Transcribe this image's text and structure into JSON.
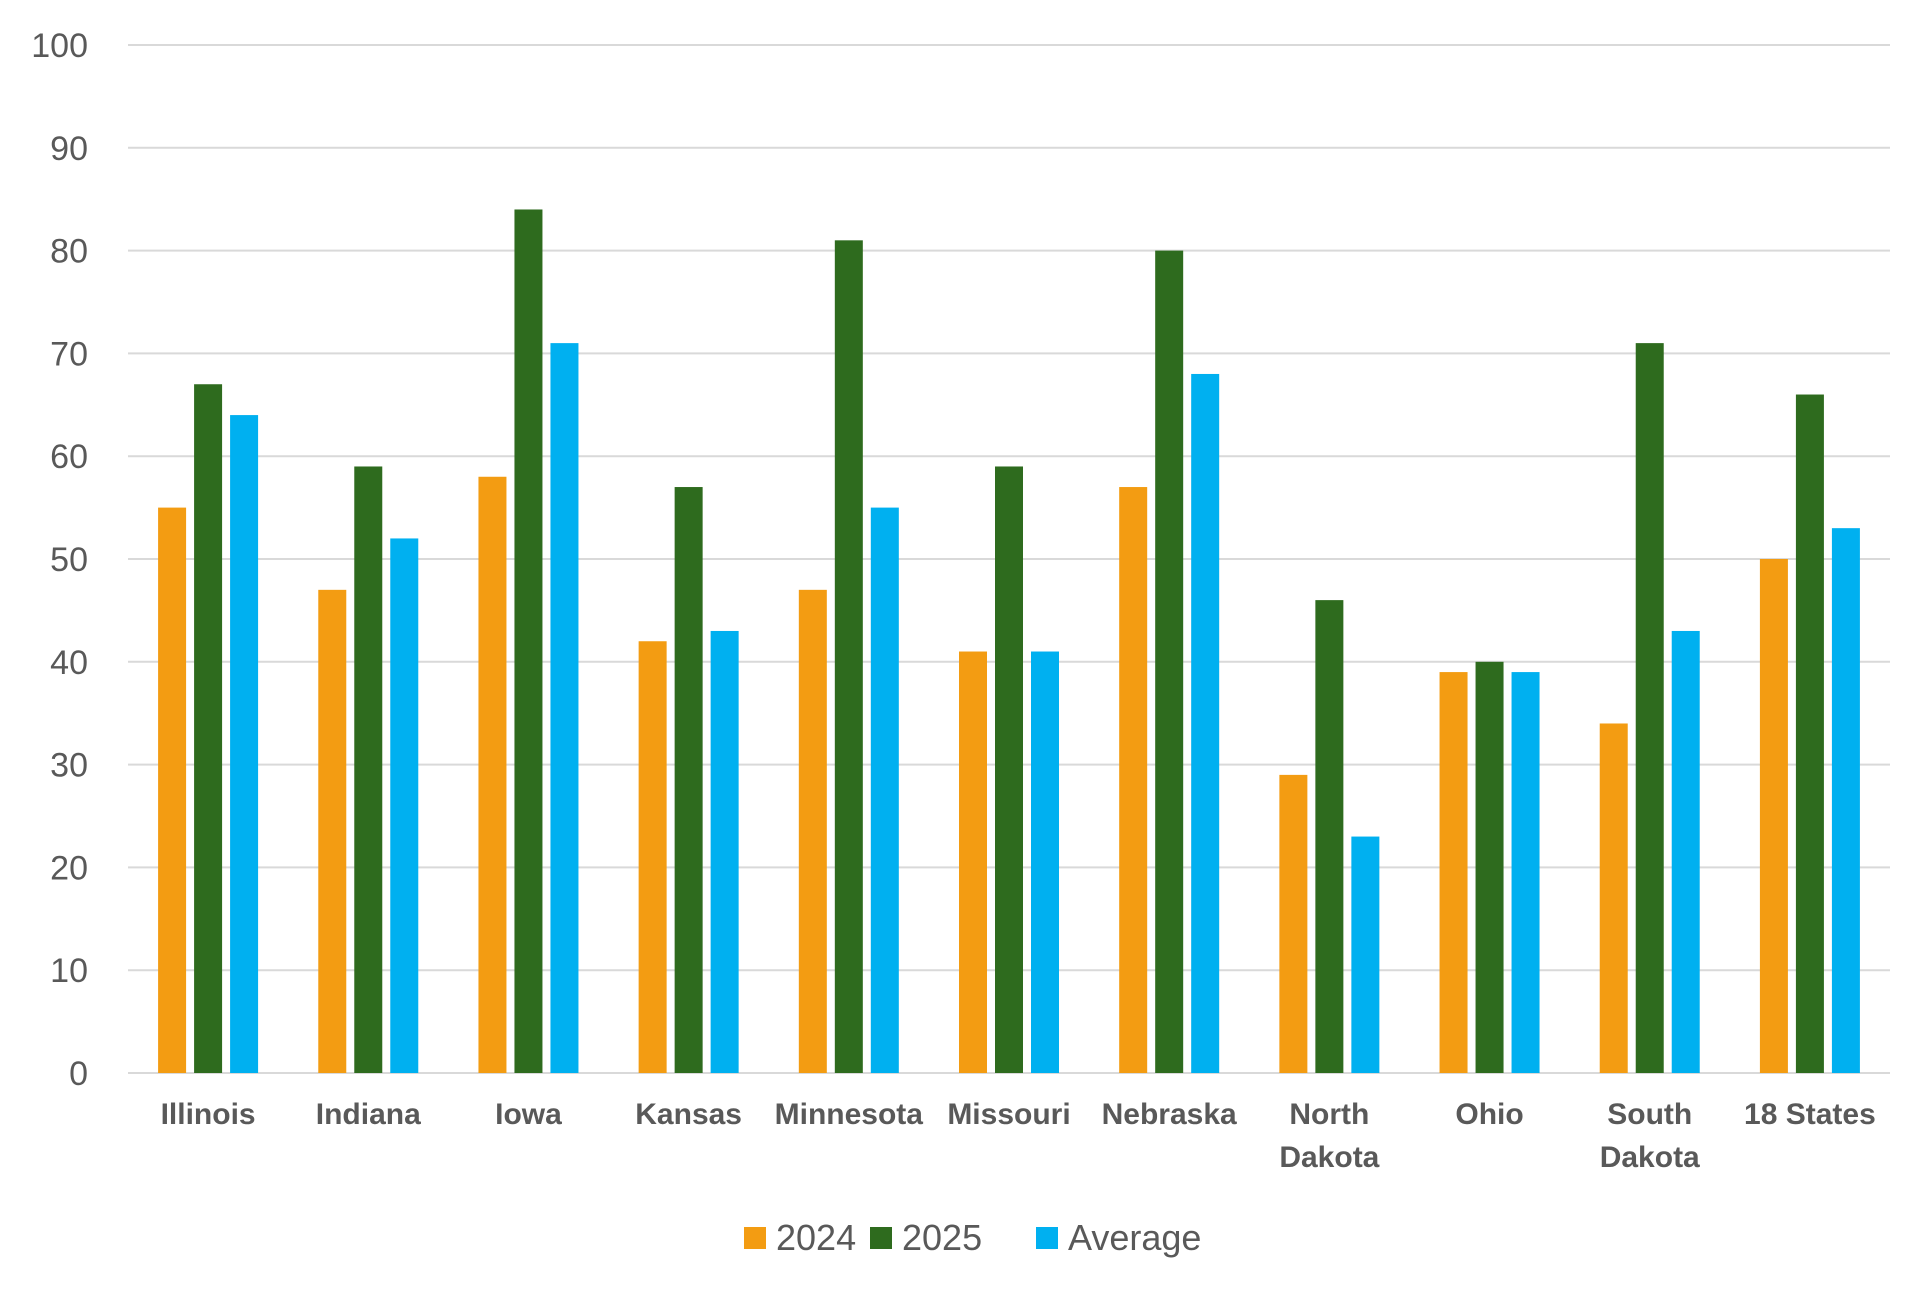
{
  "chart_data": {
    "type": "bar",
    "title": "",
    "xlabel": "",
    "ylabel": "",
    "ylim": [
      0,
      100
    ],
    "yticks": [
      0,
      10,
      20,
      30,
      40,
      50,
      60,
      70,
      80,
      90,
      100
    ],
    "grid": true,
    "legend_position": "bottom-center",
    "categories": [
      [
        "Illinois"
      ],
      [
        "Indiana"
      ],
      [
        "Iowa"
      ],
      [
        "Kansas"
      ],
      [
        "Minnesota"
      ],
      [
        "Missouri"
      ],
      [
        "Nebraska"
      ],
      [
        "North",
        "Dakota"
      ],
      [
        "Ohio"
      ],
      [
        "South",
        "Dakota"
      ],
      [
        "18 States"
      ]
    ],
    "series": [
      {
        "name": "2024",
        "color": "#F39C12",
        "values": [
          55,
          47,
          58,
          42,
          47,
          41,
          57,
          29,
          39,
          34,
          50
        ]
      },
      {
        "name": "2025",
        "color": "#2E6B1E",
        "values": [
          67,
          59,
          84,
          57,
          81,
          59,
          80,
          46,
          40,
          71,
          66
        ]
      },
      {
        "name": "Average",
        "color": "#00B0F0",
        "values": [
          64,
          52,
          71,
          43,
          55,
          41,
          68,
          23,
          39,
          43,
          53
        ]
      }
    ],
    "gridline_color": "#D9D9D9",
    "axis_color": "#D9D9D9"
  }
}
